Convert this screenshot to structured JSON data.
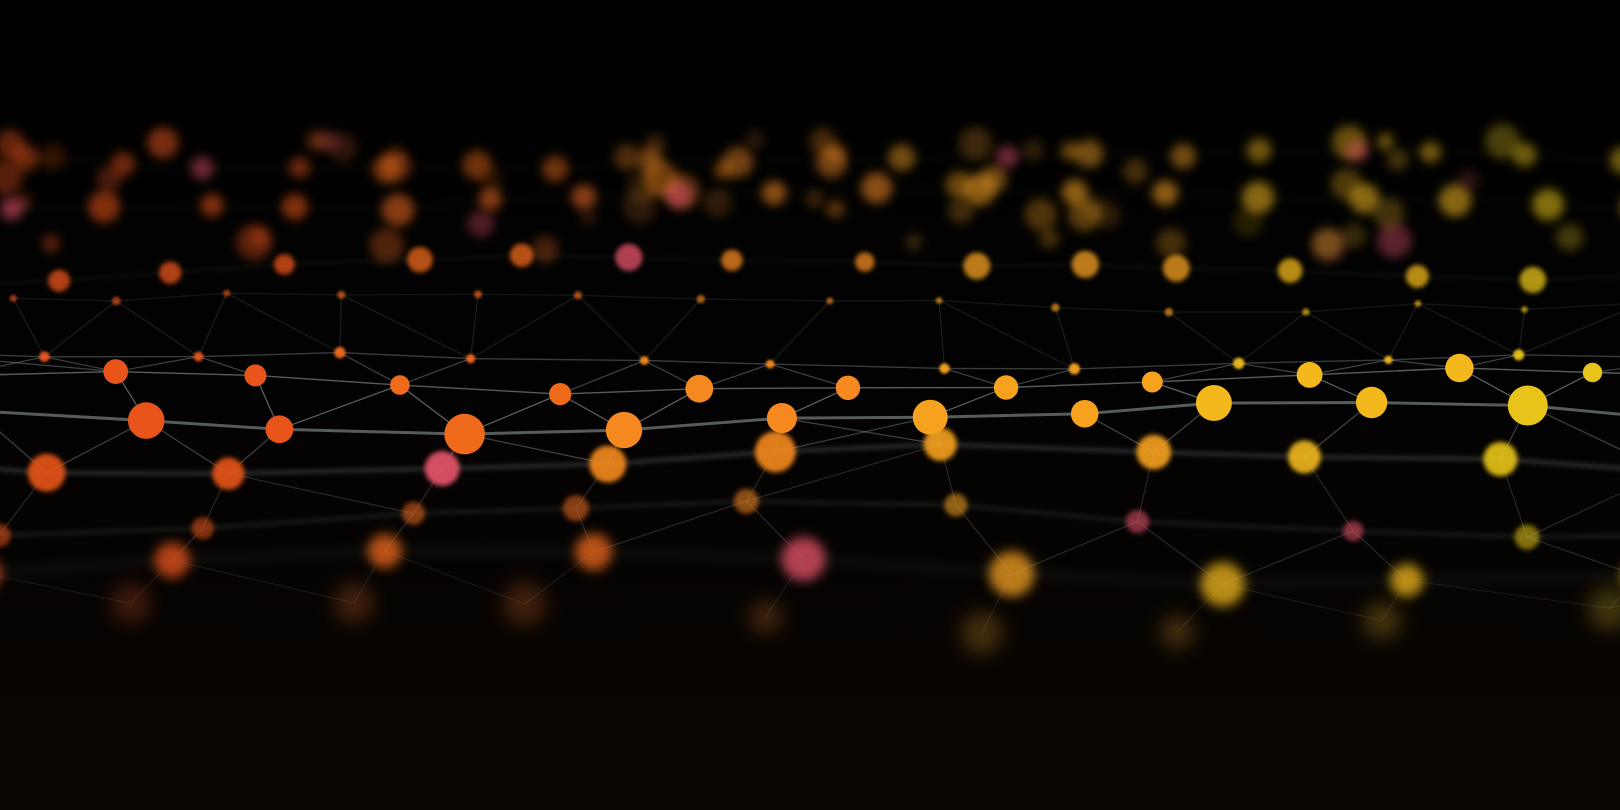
{
  "scene": {
    "subject": "network-mesh",
    "colors": {
      "background": "#000000",
      "link": "#9aa6a8",
      "node_palette": [
        "#e8541a",
        "#f06a1c",
        "#f5891f",
        "#f7a21f",
        "#f2b81c",
        "#e8c41a",
        "#e9546a"
      ]
    }
  }
}
